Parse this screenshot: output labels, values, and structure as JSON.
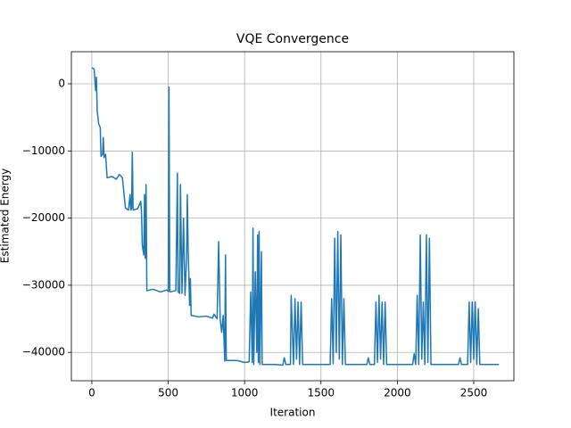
{
  "chart_data": {
    "type": "line",
    "title": "VQE Convergence",
    "x_label": "Iteration",
    "y_label": "Estimated Energy",
    "grid": true,
    "xlim": [
      -134,
      2763
    ],
    "ylim": [
      -44220,
      4780
    ],
    "xticks": [
      0,
      500,
      1000,
      1500,
      2000,
      2500
    ],
    "yticks": [
      {
        "value": -40000,
        "label": "−40000"
      },
      {
        "value": -30000,
        "label": "−30000"
      },
      {
        "value": -20000,
        "label": "−20000"
      },
      {
        "value": -10000,
        "label": "−10000"
      },
      0
    ],
    "series": [
      {
        "color": "#1f77b4",
        "x": [
          0,
          15,
          25,
          30,
          35,
          45,
          55,
          60,
          70,
          75,
          80,
          90,
          100,
          130,
          160,
          180,
          200,
          220,
          240,
          250,
          255,
          260,
          265,
          270,
          300,
          320,
          325,
          330,
          340,
          345,
          350,
          355,
          360,
          400,
          450,
          490,
          500,
          505,
          510,
          550,
          560,
          565,
          575,
          580,
          590,
          600,
          610,
          620,
          625,
          630,
          640,
          645,
          650,
          700,
          750,
          790,
          800,
          820,
          830,
          840,
          850,
          860,
          870,
          875,
          880,
          950,
          1000,
          1030,
          1040,
          1050,
          1055,
          1060,
          1070,
          1080,
          1085,
          1090,
          1095,
          1100,
          1110,
          1115,
          1200,
          1250,
          1260,
          1270,
          1300,
          1305,
          1320,
          1330,
          1340,
          1350,
          1360,
          1370,
          1380,
          1500,
          1560,
          1570,
          1580,
          1590,
          1600,
          1610,
          1620,
          1630,
          1640,
          1650,
          1660,
          1800,
          1810,
          1820,
          1850,
          1860,
          1870,
          1880,
          1890,
          1900,
          1910,
          1920,
          1930,
          2100,
          2110,
          2120,
          2130,
          2140,
          2150,
          2160,
          2170,
          2180,
          2190,
          2200,
          2210,
          2220,
          2400,
          2410,
          2420,
          2460,
          2470,
          2480,
          2490,
          2500,
          2510,
          2520,
          2530,
          2540,
          2650,
          2665
        ],
        "values": [
          2400,
          2200,
          -1000,
          1000,
          -4000,
          -6000,
          -6500,
          -10800,
          -10500,
          -8000,
          -11000,
          -10500,
          -14000,
          -13800,
          -14200,
          -13500,
          -14000,
          -18500,
          -18800,
          -16500,
          -18800,
          -18500,
          -10200,
          -18800,
          -18600,
          -17500,
          -19000,
          -24000,
          -25500,
          -16500,
          -26000,
          -15000,
          -30800,
          -30600,
          -31000,
          -30700,
          -30900,
          -500,
          -31000,
          -30800,
          -13300,
          -31000,
          -31200,
          -15000,
          -31200,
          -20000,
          -31500,
          -26000,
          -16500,
          -24000,
          -33000,
          -29000,
          -34500,
          -34700,
          -34600,
          -34900,
          -34300,
          -35000,
          -23500,
          -35000,
          -37000,
          -34500,
          -41300,
          -25500,
          -41200,
          -41200,
          -41500,
          -41400,
          -31000,
          -41500,
          -21500,
          -41800,
          -28000,
          -40000,
          -22500,
          -41500,
          -22000,
          -41800,
          -25000,
          -41800,
          -41800,
          -41900,
          -40800,
          -41800,
          -41800,
          -31500,
          -41800,
          -32000,
          -41000,
          -32500,
          -41800,
          -32500,
          -41800,
          -41800,
          -41800,
          -32000,
          -41700,
          -23000,
          -40000,
          -22000,
          -41000,
          -22500,
          -41800,
          -32000,
          -41800,
          -41800,
          -40800,
          -41800,
          -41800,
          -32500,
          -41500,
          -31500,
          -41000,
          -32500,
          -41800,
          -32500,
          -41800,
          -41800,
          -40200,
          -41800,
          -31500,
          -41800,
          -22500,
          -41000,
          -32500,
          -41800,
          -22500,
          -41500,
          -23000,
          -41800,
          -41800,
          -40800,
          -41800,
          -41800,
          -32500,
          -41500,
          -32500,
          -41000,
          -32500,
          -41800,
          -33500,
          -41800,
          -41800,
          -41800
        ]
      }
    ]
  }
}
